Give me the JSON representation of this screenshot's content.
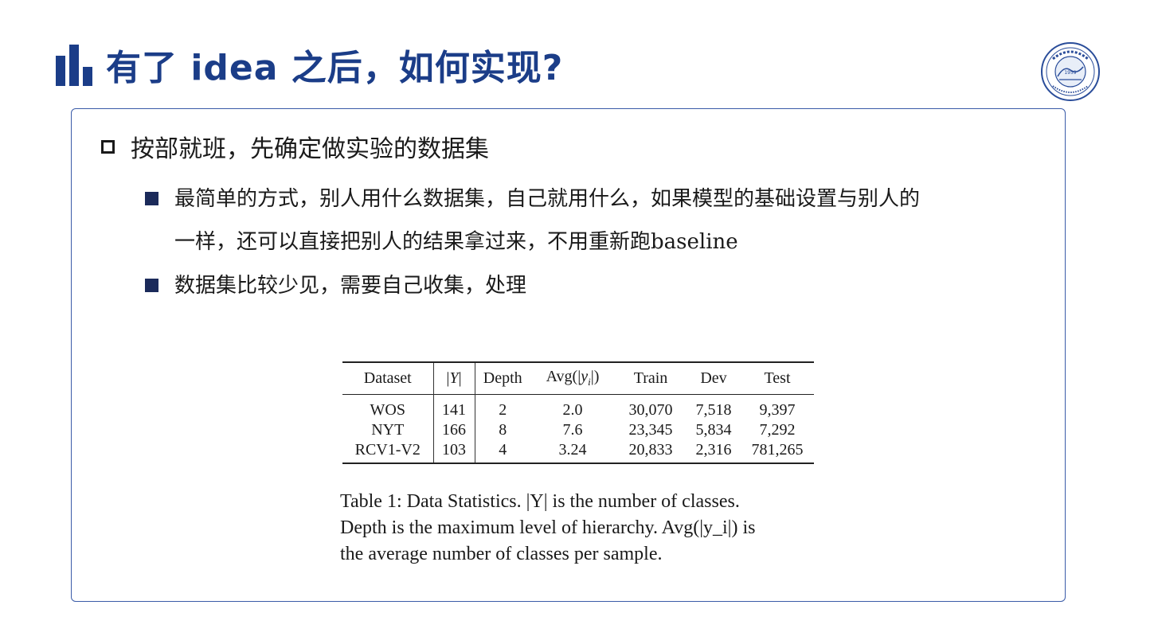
{
  "header": {
    "title": "有了 idea 之后，如何实现?",
    "accent_color": "#1b3d88",
    "logo_year": "1959"
  },
  "content": {
    "heading": "按部就班，先确定做实验的数据集",
    "bullets": [
      {
        "line1": "最简单的方式，别人用什么数据集，自己就用什么，如果模型的基础设置与别人的",
        "line2_cn": "一样，还可以直接把别人的结果拿过来，不用重新跑",
        "line2_latin": "baseline"
      },
      {
        "line1": "数据集比较少见，需要自己收集，处理"
      }
    ]
  },
  "table": {
    "headers": [
      "Dataset",
      "|Y|",
      "Depth",
      "Avg(|y_i|)",
      "Train",
      "Dev",
      "Test"
    ],
    "rows": [
      [
        "WOS",
        "141",
        "2",
        "2.0",
        "30,070",
        "7,518",
        "9,397"
      ],
      [
        "NYT",
        "166",
        "8",
        "7.6",
        "23,345",
        "5,834",
        "7,292"
      ],
      [
        "RCV1-V2",
        "103",
        "4",
        "3.24",
        "20,833",
        "2,316",
        "781,265"
      ]
    ],
    "caption_lines": [
      "Table 1: Data Statistics.  |Y| is the number of classes.",
      "Depth is the maximum level of hierarchy.  Avg(|y_i|) is",
      "the average number of classes per sample."
    ]
  }
}
